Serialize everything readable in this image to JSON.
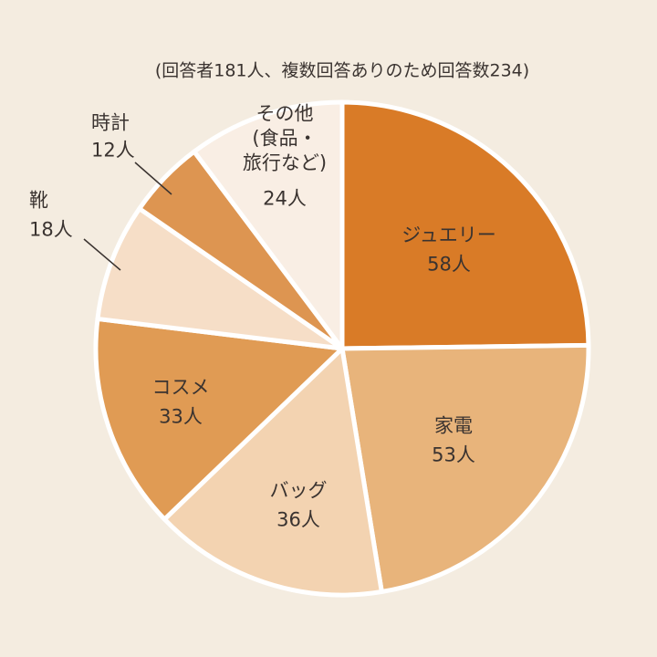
{
  "chart_data": {
    "type": "pie",
    "title": "(回答者181人、複数回答ありのため回答数234)",
    "categories": [
      "ジュエリー",
      "家電",
      "バッグ",
      "コスメ",
      "靴",
      "時計",
      "その他\n(食品・\n旅行など)"
    ],
    "values": [
      58,
      53,
      36,
      33,
      18,
      12,
      24
    ],
    "value_labels": [
      "58人",
      "53人",
      "36人",
      "33人",
      "18人",
      "12人",
      "24人"
    ],
    "colors": [
      "#d97b27",
      "#e8b47b",
      "#f3d3b1",
      "#e09b54",
      "#f6dec7",
      "#dd9551",
      "#f9eee4"
    ],
    "start_angle": 0,
    "direction": "clockwise"
  }
}
